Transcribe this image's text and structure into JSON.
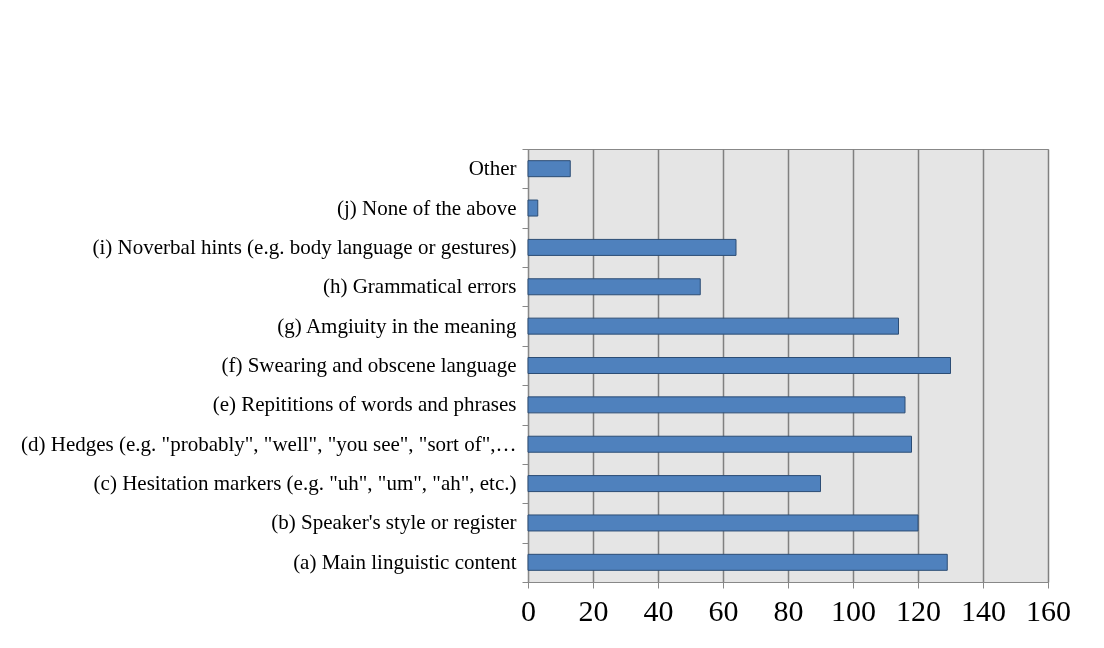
{
  "chart_data": {
    "type": "bar",
    "orientation": "horizontal",
    "categories": [
      "Other",
      "(j) None of the above",
      "(i) Noverbal hints (e.g. body language or gestures)",
      "(h) Grammatical errors",
      "(g) Amgiuity in the meaning",
      "(f) Swearing and obscene language",
      "(e) Repititions of words and phrases",
      "(d) Hedges (e.g. \"probably\", \"well\", \"you see\", \"sort of\",…",
      "(c) Hesitation markers (e.g. \"uh\", \"um\", \"ah\", etc.)",
      "(b) Speaker's style or register",
      "(a) Main linguistic content"
    ],
    "values": [
      13,
      3,
      64,
      53,
      114,
      130,
      116,
      118,
      90,
      120,
      129
    ],
    "color": "#4f81bd",
    "xlim": [
      0,
      160
    ],
    "xticks": [
      0,
      20,
      40,
      60,
      80,
      100,
      120,
      140,
      160
    ],
    "grid": "x"
  }
}
